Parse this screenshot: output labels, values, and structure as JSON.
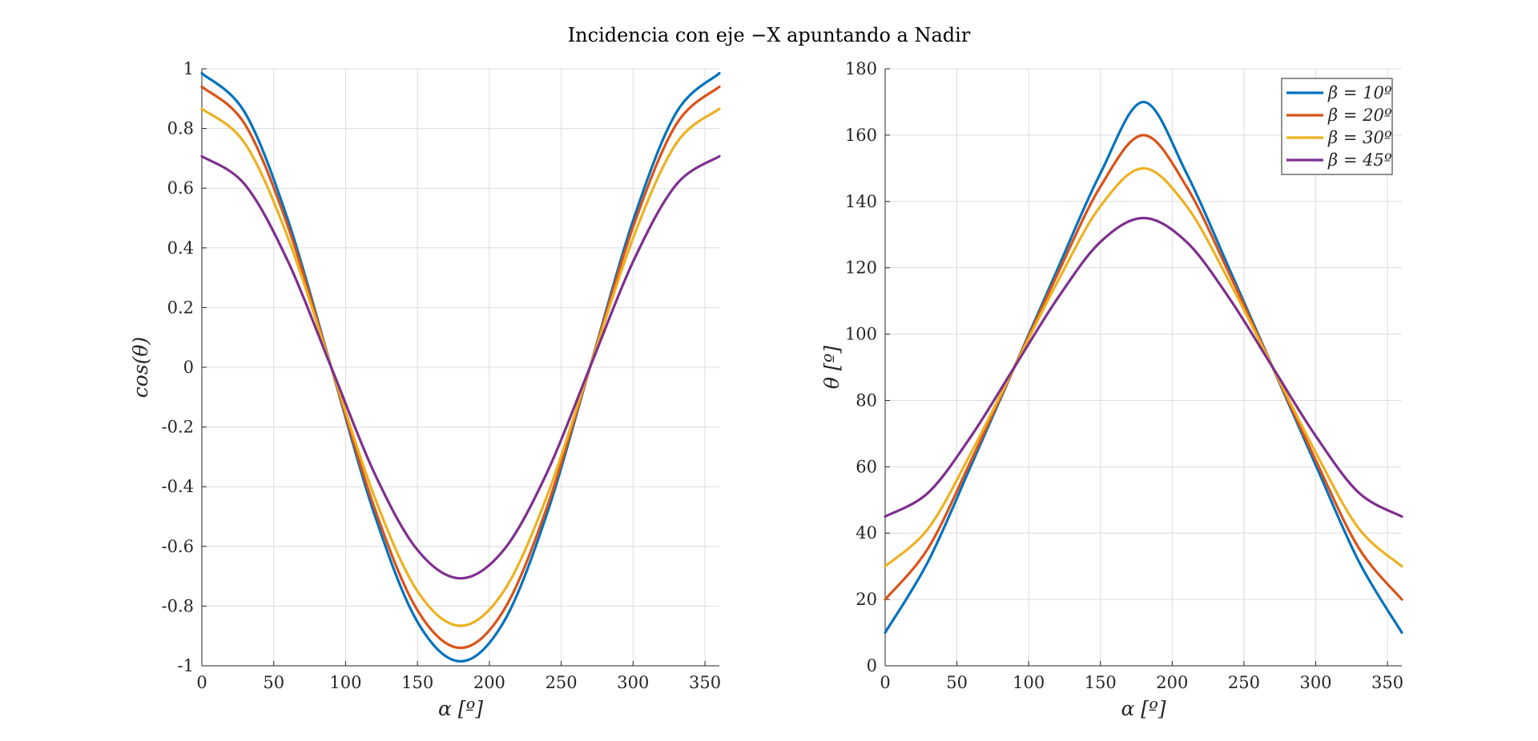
{
  "figure": {
    "title": "Incidencia con eje −X apuntando a Nadir"
  },
  "chart_data": [
    {
      "type": "line",
      "xlabel": "α [º]",
      "ylabel": "cos(θ)",
      "xlim": [
        0,
        360
      ],
      "ylim": [
        -1,
        1
      ],
      "xticks": [
        0,
        50,
        100,
        150,
        200,
        250,
        300,
        350
      ],
      "yticks": [
        -1,
        -0.8,
        -0.6,
        -0.4,
        -0.2,
        0,
        0.2,
        0.4,
        0.6,
        0.8,
        1
      ],
      "ytick_labels": [
        "-1",
        "-0.8",
        "-0.6",
        "-0.4",
        "-0.2",
        "0",
        "0.2",
        "0.4",
        "0.6",
        "0.8",
        "1"
      ],
      "grid": true,
      "x": [
        0,
        30,
        60,
        90,
        120,
        150,
        180,
        210,
        240,
        270,
        300,
        330,
        360
      ],
      "series": [
        {
          "color": "#0072BD",
          "values": [
            0.985,
            0.853,
            0.492,
            0,
            -0.492,
            -0.853,
            -0.985,
            -0.853,
            -0.492,
            0,
            0.492,
            0.853,
            0.985
          ]
        },
        {
          "color": "#D95319",
          "values": [
            0.94,
            0.814,
            0.47,
            0,
            -0.47,
            -0.814,
            -0.94,
            -0.814,
            -0.47,
            0,
            0.47,
            0.814,
            0.94
          ]
        },
        {
          "color": "#EDB120",
          "values": [
            0.866,
            0.75,
            0.433,
            0,
            -0.433,
            -0.75,
            -0.866,
            -0.75,
            -0.433,
            0,
            0.433,
            0.75,
            0.866
          ]
        },
        {
          "color": "#7E2F8E",
          "values": [
            0.707,
            0.612,
            0.354,
            0,
            -0.354,
            -0.612,
            -0.707,
            -0.612,
            -0.354,
            0,
            0.354,
            0.612,
            0.707
          ]
        }
      ]
    },
    {
      "type": "line",
      "xlabel": "α [º]",
      "ylabel": "θ [º]",
      "xlim": [
        0,
        360
      ],
      "ylim": [
        0,
        180
      ],
      "xticks": [
        0,
        50,
        100,
        150,
        200,
        250,
        300,
        350
      ],
      "yticks": [
        0,
        20,
        40,
        60,
        80,
        100,
        120,
        140,
        160,
        180
      ],
      "ytick_labels": [
        "0",
        "20",
        "40",
        "60",
        "80",
        "100",
        "120",
        "140",
        "160",
        "180"
      ],
      "grid": true,
      "legend": "top-right",
      "x": [
        0,
        30,
        60,
        90,
        120,
        150,
        180,
        210,
        240,
        270,
        300,
        330,
        360
      ],
      "series": [
        {
          "name": "β = 10º",
          "color": "#0072BD",
          "values": [
            10,
            31.5,
            60.5,
            90,
            119.5,
            148.5,
            170,
            148.5,
            119.5,
            90,
            60.5,
            31.5,
            10
          ]
        },
        {
          "name": "β = 20º",
          "color": "#D95319",
          "values": [
            20,
            35.5,
            62,
            90,
            118,
            144.5,
            160,
            144.5,
            118,
            90,
            62,
            35.5,
            20
          ]
        },
        {
          "name": "β = 30º",
          "color": "#EDB120",
          "values": [
            30,
            41.4,
            64.3,
            90,
            115.7,
            138.6,
            150,
            138.6,
            115.7,
            90,
            64.3,
            41.4,
            30
          ]
        },
        {
          "name": "β = 45º",
          "color": "#7E2F8E",
          "values": [
            45,
            52.2,
            69.3,
            90,
            110.7,
            127.8,
            135,
            127.8,
            110.7,
            90,
            69.3,
            52.2,
            45
          ]
        }
      ]
    }
  ]
}
